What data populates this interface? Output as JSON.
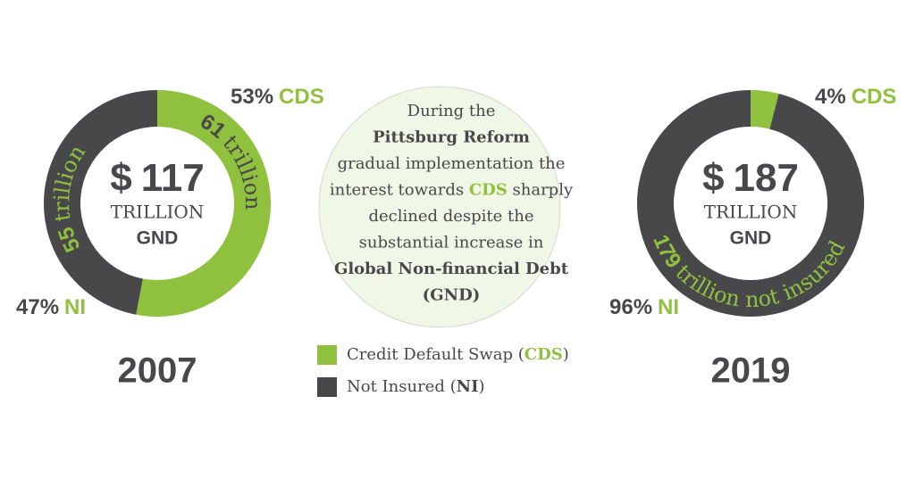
{
  "chart_data": [
    {
      "type": "donut",
      "title": "2007",
      "categories": [
        "CDS",
        "NI"
      ],
      "values": [
        53,
        47
      ],
      "value_labels": [
        "53%",
        "47%"
      ],
      "colors": [
        "#8fc13e",
        "#48484a"
      ],
      "amounts": [
        61,
        55
      ],
      "amount_unit": "trillion",
      "total_prefix": "$",
      "total": 117,
      "total_unit": "TRILLION",
      "total_label": "GND"
    },
    {
      "type": "donut",
      "title": "2019",
      "categories": [
        "CDS",
        "NI"
      ],
      "values": [
        4,
        96
      ],
      "value_labels": [
        "4%",
        "96%"
      ],
      "colors": [
        "#8fc13e",
        "#48484a"
      ],
      "amounts": [
        null,
        179
      ],
      "amount_unit": "trillion not insured",
      "total_prefix": "$",
      "total": 187,
      "total_unit": "TRILLION",
      "total_label": "GND"
    }
  ],
  "annotation": [
    [
      {
        "text": "During the",
        "style": "plain"
      }
    ],
    [
      {
        "text": "Pittsburg Reform",
        "style": "bold"
      }
    ],
    [
      {
        "text": "gradual implementation the",
        "style": "plain"
      }
    ],
    [
      {
        "text": "interest towards ",
        "style": "plain"
      },
      {
        "text": "CDS",
        "style": "green"
      },
      {
        "text": " sharply",
        "style": "plain"
      }
    ],
    [
      {
        "text": "declined despite the",
        "style": "plain"
      }
    ],
    [
      {
        "text": "substantial increase in",
        "style": "plain"
      }
    ],
    [
      {
        "text": "Global Non-financial Debt",
        "style": "bold"
      }
    ],
    [
      {
        "text": "(GND)",
        "style": "bold"
      }
    ]
  ],
  "legend": [
    {
      "color": "#8fc13e",
      "text": [
        "Credit Default Swap (",
        "CDS",
        ")"
      ]
    },
    {
      "color": "#48484a",
      "text": [
        "Not Insured (",
        "NI",
        ")"
      ]
    }
  ]
}
